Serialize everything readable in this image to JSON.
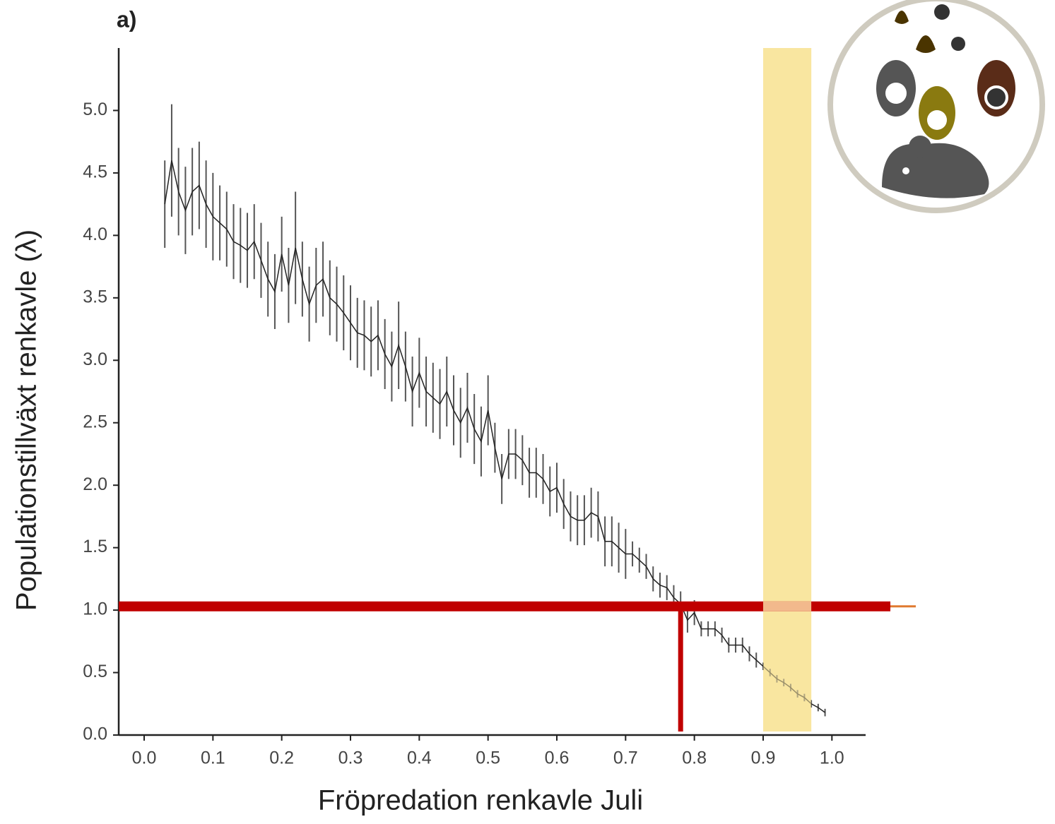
{
  "chart_data": {
    "type": "errorbar-line",
    "title": "a)",
    "xlabel": "Fröpredation renkavle Juli",
    "ylabel": "Populationstillväxt renkavle (λ)",
    "xlim": [
      -0.037,
      1.049
    ],
    "ylim": [
      0,
      5.5
    ],
    "xticks": [
      {
        "value": 0,
        "label": "0.0"
      },
      0.1,
      0.2,
      0.3,
      0.4,
      0.5,
      0.6,
      0.7,
      0.8,
      0.9,
      {
        "value": 1,
        "label": "1.0"
      }
    ],
    "yticks": [
      {
        "value": 0,
        "label": "0.0"
      },
      0.5,
      {
        "value": 1,
        "label": "1.0"
      },
      1.5,
      {
        "value": 2,
        "label": "2.0"
      },
      2.5,
      {
        "value": 3,
        "label": "3.0"
      },
      3.5,
      {
        "value": 4,
        "label": "4.0"
      },
      4.5,
      {
        "value": 5,
        "label": "5.0"
      }
    ],
    "color": "#222222",
    "x": [
      0.03,
      0.04,
      0.05,
      0.06,
      0.07,
      0.08,
      0.09,
      0.1,
      0.11,
      0.12,
      0.13,
      0.14,
      0.15,
      0.16,
      0.17,
      0.18,
      0.19,
      0.2,
      0.21,
      0.22,
      0.23,
      0.24,
      0.25,
      0.26,
      0.27,
      0.28,
      0.29,
      0.3,
      0.31,
      0.32,
      0.33,
      0.34,
      0.35,
      0.36,
      0.37,
      0.38,
      0.39,
      0.4,
      0.41,
      0.42,
      0.43,
      0.44,
      0.45,
      0.46,
      0.47,
      0.48,
      0.49,
      0.5,
      0.51,
      0.52,
      0.53,
      0.54,
      0.55,
      0.56,
      0.57,
      0.58,
      0.59,
      0.6,
      0.61,
      0.62,
      0.63,
      0.64,
      0.65,
      0.66,
      0.67,
      0.68,
      0.69,
      0.7,
      0.71,
      0.72,
      0.73,
      0.74,
      0.75,
      0.76,
      0.77,
      0.78,
      0.79,
      0.8,
      0.81,
      0.82,
      0.83,
      0.84,
      0.85,
      0.86,
      0.87,
      0.88,
      0.89,
      0.9,
      0.91,
      0.92,
      0.93,
      0.94,
      0.95,
      0.96,
      0.97,
      0.98,
      0.99
    ],
    "values": [
      4.25,
      4.6,
      4.35,
      4.2,
      4.35,
      4.4,
      4.25,
      4.15,
      4.1,
      4.05,
      3.95,
      3.92,
      3.88,
      3.95,
      3.8,
      3.65,
      3.55,
      3.85,
      3.6,
      3.9,
      3.65,
      3.45,
      3.6,
      3.65,
      3.5,
      3.45,
      3.38,
      3.3,
      3.22,
      3.2,
      3.15,
      3.2,
      3.05,
      2.95,
      3.12,
      2.95,
      2.75,
      2.9,
      2.75,
      2.7,
      2.65,
      2.75,
      2.6,
      2.5,
      2.62,
      2.45,
      2.35,
      2.6,
      2.3,
      2.05,
      2.25,
      2.25,
      2.2,
      2.1,
      2.1,
      2.05,
      1.95,
      1.98,
      1.85,
      1.75,
      1.72,
      1.72,
      1.78,
      1.75,
      1.55,
      1.55,
      1.5,
      1.45,
      1.45,
      1.4,
      1.35,
      1.25,
      1.2,
      1.18,
      1.1,
      1.05,
      0.92,
      0.98,
      0.85,
      0.85,
      0.85,
      0.8,
      0.72,
      0.72,
      0.72,
      0.65,
      0.6,
      0.55,
      0.5,
      0.45,
      0.42,
      0.38,
      0.33,
      0.3,
      0.25,
      0.22,
      0.18
    ],
    "errors": [
      0.35,
      0.45,
      0.35,
      0.35,
      0.35,
      0.35,
      0.35,
      0.35,
      0.3,
      0.3,
      0.3,
      0.3,
      0.3,
      0.3,
      0.3,
      0.3,
      0.3,
      0.3,
      0.3,
      0.45,
      0.3,
      0.3,
      0.3,
      0.3,
      0.3,
      0.3,
      0.3,
      0.3,
      0.28,
      0.28,
      0.28,
      0.28,
      0.28,
      0.28,
      0.35,
      0.28,
      0.28,
      0.28,
      0.28,
      0.28,
      0.28,
      0.28,
      0.28,
      0.28,
      0.28,
      0.28,
      0.28,
      0.28,
      0.2,
      0.2,
      0.2,
      0.2,
      0.2,
      0.2,
      0.2,
      0.2,
      0.2,
      0.2,
      0.2,
      0.2,
      0.2,
      0.2,
      0.2,
      0.2,
      0.2,
      0.2,
      0.2,
      0.2,
      0.1,
      0.1,
      0.1,
      0.1,
      0.1,
      0.1,
      0.1,
      0.1,
      0.1,
      0.1,
      0.06,
      0.06,
      0.06,
      0.06,
      0.06,
      0.06,
      0.06,
      0.06,
      0.06,
      0.03,
      0.03,
      0.03,
      0.03,
      0.03,
      0.03,
      0.03,
      0.03,
      0.03,
      0.03
    ],
    "threshold_y": 1.03,
    "threshold_color": "#c00000",
    "marker_x": 0.78,
    "highlight_band": [
      0.9,
      0.97
    ],
    "highlight_color": "#f9e6a0"
  }
}
